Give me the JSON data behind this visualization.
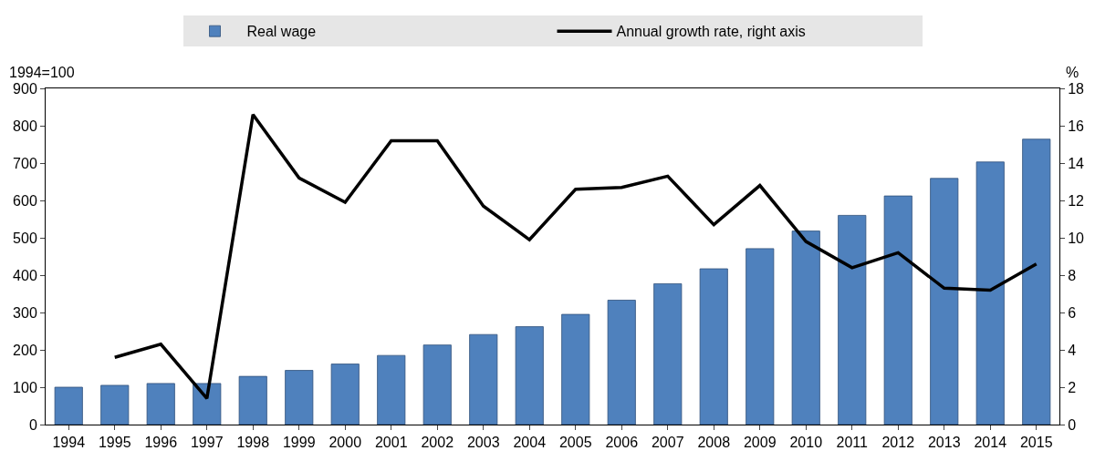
{
  "chart_data": {
    "type": "bar",
    "ylabel": "1994=100",
    "y2label": "%",
    "categories": [
      "1994",
      "1995",
      "1996",
      "1997",
      "1998",
      "1999",
      "2000",
      "2001",
      "2002",
      "2003",
      "2004",
      "2005",
      "2006",
      "2007",
      "2008",
      "2009",
      "2010",
      "2011",
      "2012",
      "2013",
      "2014",
      "2015"
    ],
    "series": [
      {
        "name": "Real wage",
        "color": "#4f81bd",
        "values": [
          100,
          105,
          110,
          110,
          129,
          145,
          162,
          185,
          213,
          241,
          262,
          295,
          333,
          377,
          417,
          471,
          518,
          560,
          612,
          659,
          703,
          764
        ]
      },
      {
        "name": "Annual growth rate, right axis",
        "type": "line",
        "axis": "y2",
        "color": "#000000",
        "values": [
          null,
          3.6,
          4.3,
          1.4,
          16.6,
          13.2,
          11.9,
          15.2,
          15.2,
          11.7,
          9.9,
          12.6,
          12.7,
          13.3,
          10.7,
          12.8,
          9.8,
          8.4,
          9.2,
          7.3,
          7.2,
          8.6
        ]
      }
    ],
    "ylim": [
      0,
      900
    ],
    "yticks": [
      0,
      100,
      200,
      300,
      400,
      500,
      600,
      700,
      800,
      900
    ],
    "y2lim": [
      0,
      18
    ],
    "y2ticks": [
      0,
      2,
      4,
      6,
      8,
      10,
      12,
      14,
      16,
      18
    ],
    "legend": "top",
    "marker": "none",
    "line_style": "solid"
  }
}
